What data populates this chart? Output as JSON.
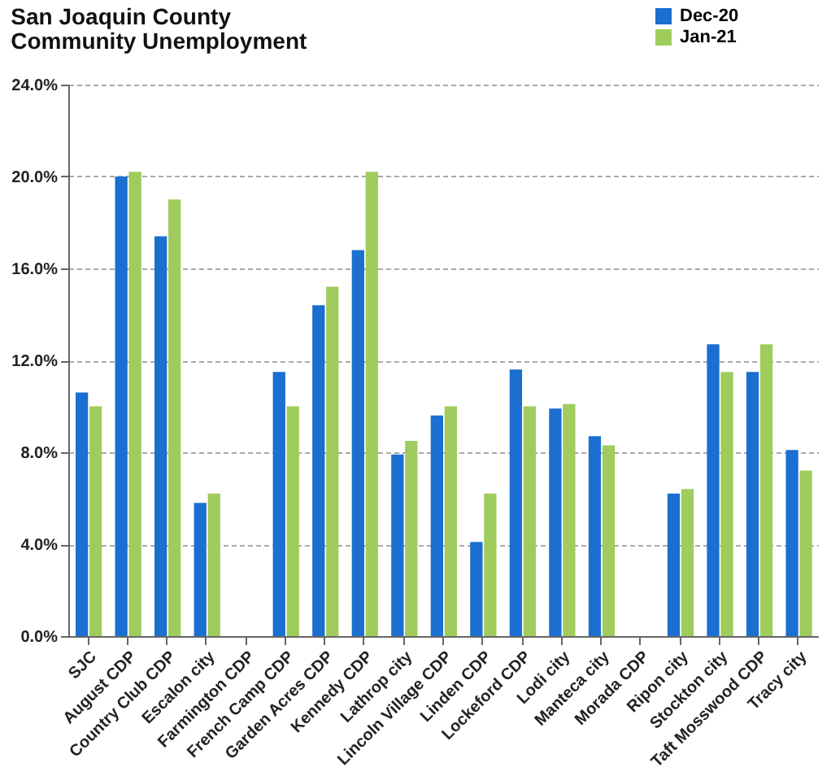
{
  "chart_data": {
    "type": "bar",
    "title": "San Joaquin County",
    "subtitle": "Community Unemployment",
    "categories": [
      "SJC",
      "August CDP",
      "Country Club CDP",
      "Escalon city",
      "Farmington CDP",
      "French Camp CDP",
      "Garden Acres CDP",
      "Kennedy CDP",
      "Lathrop city",
      "Lincoln Village CDP",
      "Linden CDP",
      "Lockeford CDP",
      "Lodi city",
      "Manteca city",
      "Morada CDP",
      "Ripon city",
      "Stockton city",
      "Taft Mosswood CDP",
      "Tracy city"
    ],
    "series": [
      {
        "name": "Dec-20",
        "color": "#1a6fd0",
        "values": [
          10.6,
          20.0,
          17.4,
          5.8,
          null,
          11.5,
          14.4,
          16.8,
          7.9,
          9.6,
          4.1,
          11.6,
          9.9,
          8.7,
          null,
          6.2,
          12.7,
          11.5,
          8.1
        ]
      },
      {
        "name": "Jan-21",
        "color": "#9fcc5c",
        "values": [
          10.0,
          20.2,
          19.0,
          6.2,
          null,
          10.0,
          15.2,
          20.2,
          8.5,
          10.0,
          6.2,
          10.0,
          10.1,
          8.3,
          null,
          6.4,
          11.5,
          12.7,
          7.2
        ]
      }
    ],
    "ylim": [
      0,
      24
    ],
    "yticks": [
      {
        "value": 0,
        "label": "0.0%"
      },
      {
        "value": 4,
        "label": "4.0%"
      },
      {
        "value": 8,
        "label": "8.0%"
      },
      {
        "value": 12,
        "label": "12.0%"
      },
      {
        "value": 16,
        "label": "16.0%"
      },
      {
        "value": 20,
        "label": "20.0%"
      },
      {
        "value": 24,
        "label": "24.0%"
      }
    ],
    "grid": "y",
    "legend": "top right"
  }
}
